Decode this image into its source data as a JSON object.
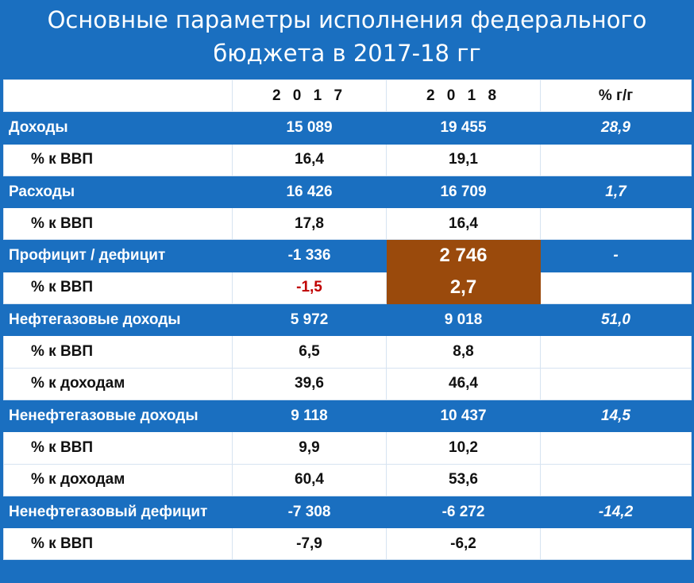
{
  "title": {
    "line1": "Основные параметры исполнения федерального",
    "line2": "бюджета в 2017-18 гг"
  },
  "columns": {
    "c2017": "2 0 1 7",
    "c2018": "2 0 1 8",
    "yoy": "% г/г"
  },
  "rows": [
    {
      "type": "main",
      "label": "Доходы",
      "v2017": "15 089",
      "v2018": "19 455",
      "yoy": "28,9"
    },
    {
      "type": "sub",
      "label": "% к ВВП",
      "v2017": "16,4",
      "v2018": "19,1",
      "yoy": ""
    },
    {
      "type": "main",
      "label": "Расходы",
      "v2017": "16 426",
      "v2018": "16 709",
      "yoy": "1,7"
    },
    {
      "type": "sub",
      "label": "% к ВВП",
      "v2017": "17,8",
      "v2018": "16,4",
      "yoy": ""
    },
    {
      "type": "main",
      "label": "Профицит / дефицит",
      "v2017": "-1 336",
      "v2018": "2 746",
      "yoy": "-"
    },
    {
      "type": "sub",
      "label": "% к ВВП",
      "v2017": "-1,5",
      "v2018": "2,7",
      "yoy": ""
    },
    {
      "type": "main",
      "label": "Нефтегазовые доходы",
      "v2017": "5 972",
      "v2018": "9 018",
      "yoy": "51,0"
    },
    {
      "type": "sub",
      "label": "% к ВВП",
      "v2017": "6,5",
      "v2018": "8,8",
      "yoy": ""
    },
    {
      "type": "sub",
      "label": "% к доходам",
      "v2017": "39,6",
      "v2018": "46,4",
      "yoy": ""
    },
    {
      "type": "main",
      "label": "Ненефтегазовые доходы",
      "v2017": "9 118",
      "v2018": "10 437",
      "yoy": "14,5"
    },
    {
      "type": "sub",
      "label": "% к ВВП",
      "v2017": "9,9",
      "v2018": "10,2",
      "yoy": ""
    },
    {
      "type": "sub",
      "label": "% к доходам",
      "v2017": "60,4",
      "v2018": "53,6",
      "yoy": ""
    },
    {
      "type": "main",
      "label": "Ненефтегазовый дефицит",
      "v2017": "-7 308",
      "v2018": "-6 272",
      "yoy": "-14,2"
    },
    {
      "type": "sub",
      "label": "% к ВВП",
      "v2017": "-7,9",
      "v2018": "-6,2",
      "yoy": ""
    }
  ],
  "colors": {
    "background": "#1a6fc0",
    "highlight": "#9a4a0c",
    "negative": "#c00000"
  }
}
